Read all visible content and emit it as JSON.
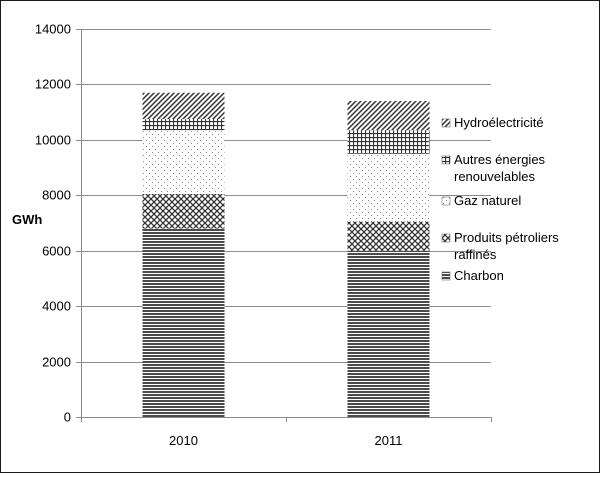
{
  "chart_data": {
    "type": "bar",
    "stacked": true,
    "categories": [
      "2010",
      "2011"
    ],
    "ylabel": "GWh",
    "ylim": [
      0,
      14000
    ],
    "yticks": [
      0,
      2000,
      4000,
      6000,
      8000,
      10000,
      12000,
      14000
    ],
    "grid": true,
    "legend_position": "right",
    "series": [
      {
        "name": "Charbon",
        "values": [
          6800,
          6000
        ],
        "pattern": "horizontal-lines",
        "color": "#4a4a4a"
      },
      {
        "name": "Produits pétroliers raffinés",
        "values": [
          1250,
          1050
        ],
        "pattern": "crosshatch",
        "color": "#3a3a3a"
      },
      {
        "name": "Gaz naturel",
        "values": [
          2300,
          2450
        ],
        "pattern": "sparse-dots",
        "color": "#9a9a9a"
      },
      {
        "name": "Autres énergies renouvelables",
        "values": [
          400,
          850
        ],
        "pattern": "grid",
        "color": "#3a3a3a"
      },
      {
        "name": "Hydroélectricité",
        "values": [
          950,
          1050
        ],
        "pattern": "diagonal",
        "color": "#3a3a3a"
      }
    ],
    "legend": [
      {
        "lines": [
          "Hydroélectricité"
        ]
      },
      {
        "lines": [
          "Autres énergies",
          "renouvelables"
        ]
      },
      {
        "lines": [
          "Gaz naturel"
        ]
      },
      {
        "lines": [
          "Produits pétroliers",
          "raffinés"
        ]
      },
      {
        "lines": [
          "Charbon"
        ]
      }
    ]
  }
}
